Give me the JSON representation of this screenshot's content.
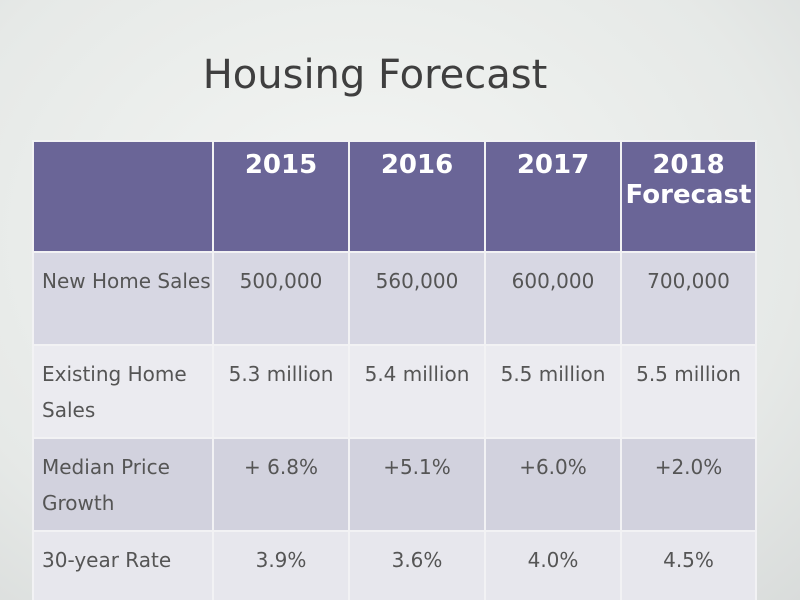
{
  "title": "Housing Forecast",
  "table": {
    "header": [
      "2015",
      "2016",
      "2017",
      "2018 Forecast"
    ],
    "rows": [
      [
        "New Home Sales",
        "500,000",
        "560,000",
        "600,000",
        "700,000"
      ],
      [
        "Existing Home Sales",
        "5.3 million",
        "5.4 million",
        "5.5 million",
        "5.5 million"
      ],
      [
        "Median Price Growth",
        "+ 6.8%",
        "+5.1%",
        "+6.0%",
        "+2.0%"
      ],
      [
        "30-year Rate",
        "3.9%",
        "3.6%",
        "4.0%",
        "4.5%"
      ]
    ]
  }
}
